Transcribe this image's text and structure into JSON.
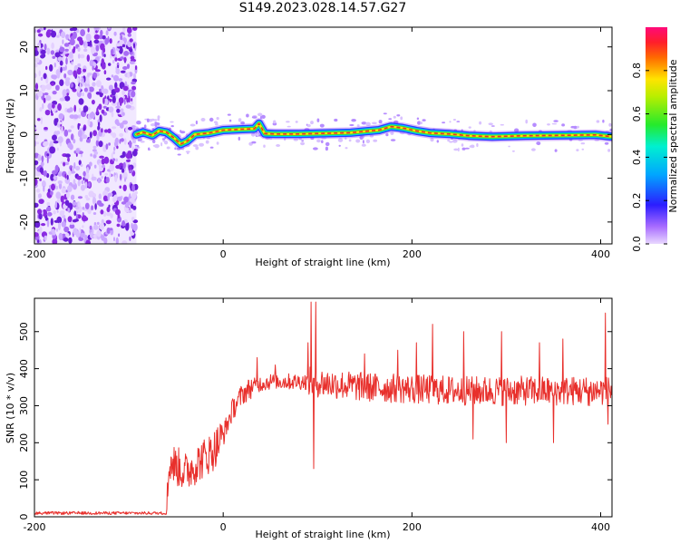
{
  "title": "S149.2023.028.14.57.G27",
  "colors": {
    "snr_line": "#e8302c",
    "ridge_core": "#e8302c",
    "ridge_mid": "#33d93a",
    "ridge_edge": "#2a3bff",
    "noise": "#8a2be2"
  },
  "chart_data": [
    {
      "type": "heatmap",
      "id": "spectrogram",
      "xlabel": "Height of straight line (km)",
      "ylabel": "Frequency (Hz)",
      "xlim": [
        -200,
        412
      ],
      "ylim": [
        -25,
        24.5
      ],
      "x_ticks": [
        -200,
        0,
        200,
        400
      ],
      "y_ticks": [
        -20,
        -10,
        0,
        10,
        20
      ],
      "noise_region_x": [
        -200,
        -92
      ],
      "ridge": [
        [
          -92,
          0.0
        ],
        [
          -85,
          0.5
        ],
        [
          -75,
          -0.2
        ],
        [
          -68,
          0.8
        ],
        [
          -60,
          0.5
        ],
        [
          -52,
          -0.8
        ],
        [
          -45,
          -2.2
        ],
        [
          -38,
          -1.5
        ],
        [
          -30,
          0.0
        ],
        [
          -15,
          0.3
        ],
        [
          0,
          1.0
        ],
        [
          20,
          1.2
        ],
        [
          33,
          1.3
        ],
        [
          38,
          2.5
        ],
        [
          44,
          0.2
        ],
        [
          55,
          0.1
        ],
        [
          80,
          0.1
        ],
        [
          100,
          0.2
        ],
        [
          120,
          0.3
        ],
        [
          135,
          0.4
        ],
        [
          150,
          0.7
        ],
        [
          165,
          1.0
        ],
        [
          178,
          1.8
        ],
        [
          190,
          1.5
        ],
        [
          205,
          0.8
        ],
        [
          220,
          0.3
        ],
        [
          240,
          0.1
        ],
        [
          260,
          -0.3
        ],
        [
          285,
          -0.5
        ],
        [
          320,
          -0.3
        ],
        [
          360,
          -0.2
        ],
        [
          395,
          -0.1
        ],
        [
          412,
          -0.5
        ]
      ],
      "colorbar": {
        "label": "Normalized spectral amplitude",
        "ticks": [
          "0.0",
          "0.2",
          "0.4",
          "0.6",
          "0.8"
        ],
        "range": [
          0,
          1
        ]
      }
    },
    {
      "type": "line",
      "id": "snr",
      "xlabel": "Height of straight line (km)",
      "ylabel": "SNR (10 * v/v)",
      "xlim": [
        -200,
        412
      ],
      "ylim": [
        0,
        590
      ],
      "x_ticks": [
        -200,
        0,
        200,
        400
      ],
      "y_ticks": [
        0,
        100,
        200,
        300,
        400,
        500
      ],
      "series": [
        {
          "profile": [
            [
              -200,
              10
            ],
            [
              -60,
              10
            ],
            [
              -57,
              150
            ],
            [
              -40,
              120
            ],
            [
              -25,
              150
            ],
            [
              -10,
              180
            ],
            [
              0,
              220
            ],
            [
              10,
              290
            ],
            [
              20,
              330
            ],
            [
              30,
              350
            ],
            [
              40,
              360
            ],
            [
              50,
              365
            ],
            [
              70,
              365
            ],
            [
              90,
              365
            ],
            [
              110,
              360
            ],
            [
              150,
              350
            ],
            [
              200,
              345
            ],
            [
              250,
              340
            ],
            [
              300,
              340
            ],
            [
              350,
              340
            ],
            [
              412,
              340
            ]
          ],
          "spikes": [
            [
              36,
              430
            ],
            [
              55,
              410
            ],
            [
              90,
              470
            ],
            [
              93,
              580
            ],
            [
              96,
              130
            ],
            [
              98,
              580
            ],
            [
              150,
              440
            ],
            [
              185,
              450
            ],
            [
              205,
              470
            ],
            [
              222,
              520
            ],
            [
              255,
              500
            ],
            [
              265,
              210
            ],
            [
              295,
              500
            ],
            [
              300,
              200
            ],
            [
              335,
              470
            ],
            [
              350,
              200
            ],
            [
              360,
              480
            ],
            [
              388,
              300
            ],
            [
              405,
              550
            ],
            [
              408,
              250
            ]
          ]
        }
      ]
    }
  ]
}
